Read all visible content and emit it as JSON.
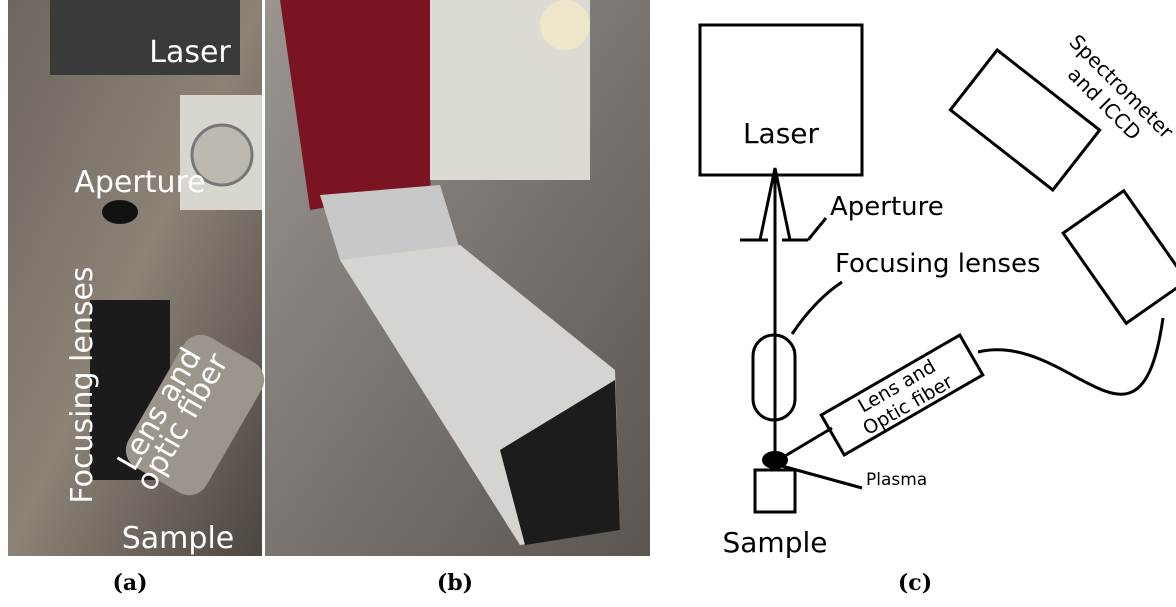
{
  "panels": [
    {
      "caption": "(a)",
      "labels": [
        "Laser",
        "Aperture",
        "Focusing lenses",
        [
          "Lens and",
          "optic fiber"
        ],
        "Sample"
      ]
    },
    {
      "caption": "(b)"
    },
    {
      "caption": "(c)",
      "laser": "Laser",
      "aperture": "Aperture",
      "focusing": "Focusing lenses",
      "spectrometer": [
        "Spectrometer",
        "and ICCD"
      ],
      "fiber": [
        "Lens and",
        "Optic fiber"
      ],
      "plasma": "Plasma",
      "sample": "Sample"
    }
  ]
}
